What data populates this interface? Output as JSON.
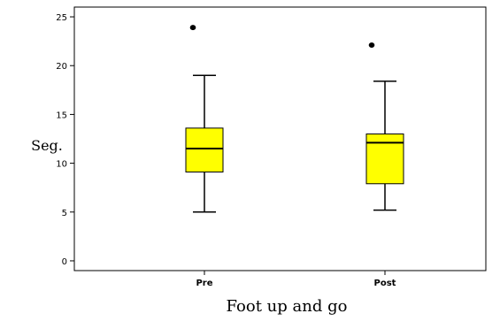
{
  "chart_data": {
    "type": "box",
    "xlabel": "Foot up and go",
    "ylabel": "Seg.",
    "ylim": [
      -1,
      26
    ],
    "yticks": [
      0,
      5,
      10,
      15,
      20,
      25
    ],
    "categories": [
      "Pre",
      "Post"
    ],
    "boxes": [
      {
        "category": "Pre",
        "whisker_low": 5.0,
        "q1": 9.1,
        "median": 11.5,
        "q3": 13.6,
        "whisker_high": 19.0,
        "outliers": [
          23.9
        ]
      },
      {
        "category": "Post",
        "whisker_low": 5.2,
        "q1": 7.9,
        "median": 12.1,
        "q3": 13.0,
        "whisker_high": 18.4,
        "outliers": [
          22.1
        ]
      }
    ],
    "colors": {
      "box_fill": "#ffff00",
      "box_stroke": "#000000",
      "axis": "#000000"
    }
  }
}
